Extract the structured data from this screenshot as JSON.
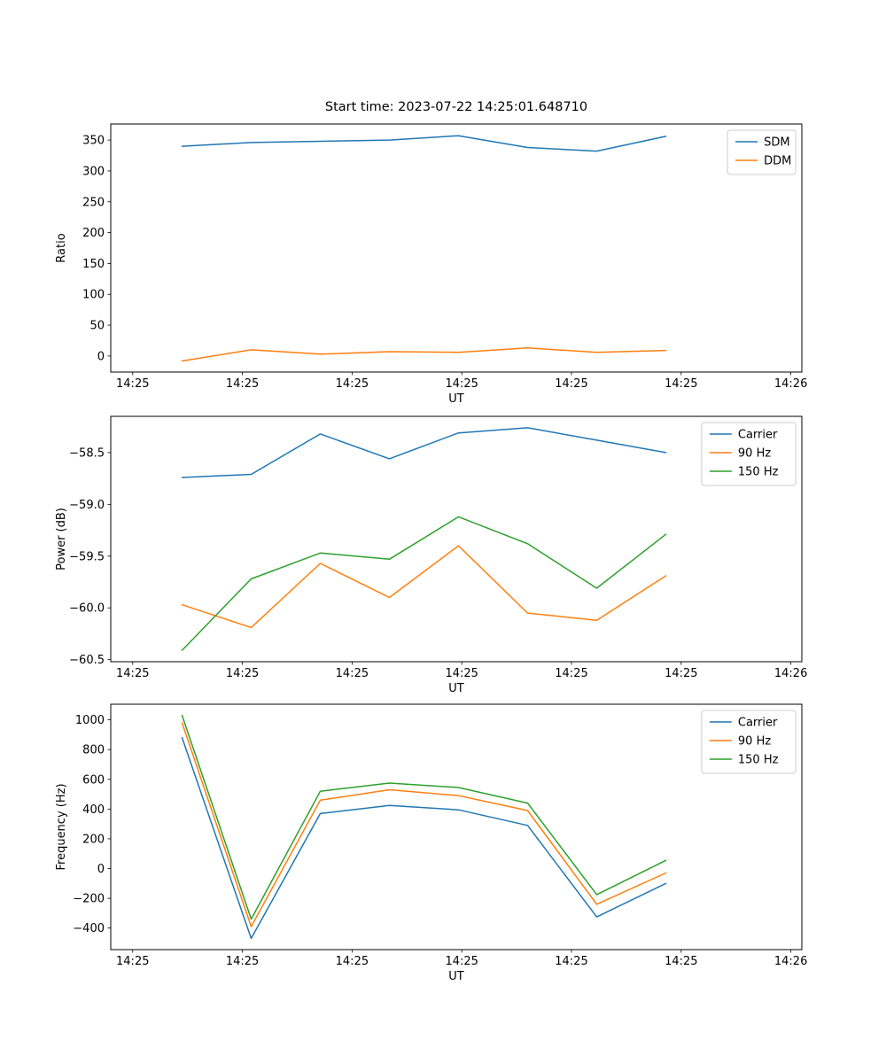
{
  "figure": {
    "background": "#ffffff",
    "title": "Start time: 2023-07-22 14:25:01.648710"
  },
  "chart_data": [
    {
      "type": "line",
      "title": "Start time: 2023-07-22 14:25:01.648710",
      "xlabel": "UT",
      "ylabel": "Ratio",
      "x_seconds": [
        4.5,
        10.8,
        17.1,
        23.4,
        29.7,
        36.0,
        42.3,
        48.6
      ],
      "xlim": [
        -2,
        61
      ],
      "xticks": [
        0,
        10,
        20,
        30,
        40,
        50,
        60
      ],
      "xtick_labels": [
        "14:25",
        "14:25",
        "14:25",
        "14:25",
        "14:25",
        "14:25",
        "14:26"
      ],
      "ylim": [
        -26,
        376
      ],
      "yticks": [
        0,
        50,
        100,
        150,
        200,
        250,
        300,
        350
      ],
      "ytick_labels": [
        "0",
        "50",
        "100",
        "150",
        "200",
        "250",
        "300",
        "350"
      ],
      "grid": false,
      "legend_position": "upper right",
      "series": [
        {
          "name": "SDM",
          "color": "#1f77b4",
          "values": [
            340,
            346,
            348,
            350,
            357,
            338,
            332,
            356
          ]
        },
        {
          "name": "DDM",
          "color": "#ff7f0e",
          "values": [
            -8,
            10,
            3,
            7,
            6,
            13,
            6,
            9
          ]
        }
      ]
    },
    {
      "type": "line",
      "title": "",
      "xlabel": "UT",
      "ylabel": "Power (dB)",
      "x_seconds": [
        4.5,
        10.8,
        17.1,
        23.4,
        29.7,
        36.0,
        42.3,
        48.6
      ],
      "xlim": [
        -2,
        61
      ],
      "xticks": [
        0,
        10,
        20,
        30,
        40,
        50,
        60
      ],
      "xtick_labels": [
        "14:25",
        "14:25",
        "14:25",
        "14:25",
        "14:25",
        "14:25",
        "14:26"
      ],
      "ylim": [
        -60.52,
        -58.15
      ],
      "yticks": [
        -60.5,
        -60.0,
        -59.5,
        -59.0,
        -58.5
      ],
      "ytick_labels": [
        "−60.5",
        "−60.0",
        "−59.5",
        "−59.0",
        "−58.5"
      ],
      "grid": false,
      "legend_position": "upper right",
      "series": [
        {
          "name": "Carrier",
          "color": "#1f77b4",
          "values": [
            -58.74,
            -58.71,
            -58.32,
            -58.56,
            -58.31,
            -58.26,
            -58.38,
            -58.5
          ]
        },
        {
          "name": "90 Hz",
          "color": "#ff7f0e",
          "values": [
            -59.97,
            -60.19,
            -59.57,
            -59.9,
            -59.4,
            -60.05,
            -60.12,
            -59.69
          ]
        },
        {
          "name": "150 Hz",
          "color": "#2ca02c",
          "values": [
            -60.41,
            -59.72,
            -59.47,
            -59.53,
            -59.12,
            -59.38,
            -59.81,
            -59.29
          ]
        }
      ]
    },
    {
      "type": "line",
      "title": "",
      "xlabel": "UT",
      "ylabel": "Frequency (Hz)",
      "x_seconds": [
        4.5,
        10.8,
        17.1,
        23.4,
        29.7,
        36.0,
        42.3,
        48.6
      ],
      "xlim": [
        -2,
        61
      ],
      "xticks": [
        0,
        10,
        20,
        30,
        40,
        50,
        60
      ],
      "xtick_labels": [
        "14:25",
        "14:25",
        "14:25",
        "14:25",
        "14:25",
        "14:25",
        "14:26"
      ],
      "ylim": [
        -545,
        1105
      ],
      "yticks": [
        -400,
        -200,
        0,
        200,
        400,
        600,
        800,
        1000
      ],
      "ytick_labels": [
        "−400",
        "−200",
        "0",
        "200",
        "400",
        "600",
        "800",
        "1000"
      ],
      "grid": false,
      "legend_position": "upper right",
      "series": [
        {
          "name": "Carrier",
          "color": "#1f77b4",
          "values": [
            880,
            -470,
            370,
            425,
            395,
            290,
            -325,
            -100
          ]
        },
        {
          "name": "90 Hz",
          "color": "#ff7f0e",
          "values": [
            980,
            -390,
            460,
            530,
            490,
            390,
            -240,
            -30
          ]
        },
        {
          "name": "150 Hz",
          "color": "#2ca02c",
          "values": [
            1030,
            -340,
            520,
            575,
            545,
            440,
            -175,
            55
          ]
        }
      ]
    }
  ]
}
